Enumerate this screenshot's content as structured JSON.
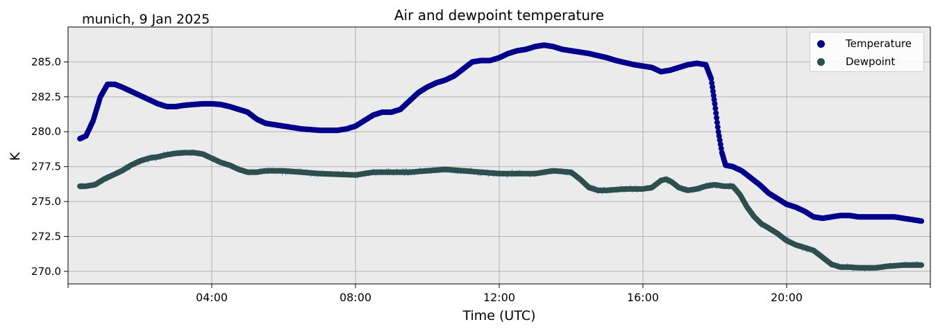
{
  "chart_data": {
    "type": "scatter",
    "title": "Air and dewpoint temperature",
    "subtitle": "munich, 9 Jan 2025",
    "xlabel": "Time (UTC)",
    "ylabel": "K",
    "x_unit": "hours UTC",
    "xlim": [
      0,
      24
    ],
    "ylim": [
      269.1,
      287.5
    ],
    "x_ticks": [
      4,
      8,
      12,
      16,
      20
    ],
    "x_tick_labels": [
      "04:00",
      "08:00",
      "12:00",
      "16:00",
      "20:00"
    ],
    "y_ticks": [
      270.0,
      272.5,
      275.0,
      277.5,
      280.0,
      282.5,
      285.0
    ],
    "y_tick_labels": [
      "270.0",
      "272.5",
      "275.0",
      "277.5",
      "280.0",
      "282.5",
      "285.0"
    ],
    "grid": true,
    "legend_position": "top-right",
    "series": [
      {
        "name": "Temperature",
        "color": "#00008b",
        "raw_color": "#7aa6a6",
        "x": [
          0.33,
          0.5,
          0.7,
          0.9,
          1.1,
          1.3,
          1.5,
          1.75,
          2.0,
          2.25,
          2.5,
          2.75,
          3.0,
          3.25,
          3.5,
          3.75,
          4.0,
          4.25,
          4.5,
          4.75,
          5.0,
          5.25,
          5.5,
          5.75,
          6.0,
          6.25,
          6.5,
          6.75,
          7.0,
          7.25,
          7.5,
          7.75,
          8.0,
          8.25,
          8.5,
          8.75,
          9.0,
          9.25,
          9.5,
          9.75,
          10.0,
          10.25,
          10.5,
          10.75,
          11.0,
          11.25,
          11.5,
          11.75,
          12.0,
          12.25,
          12.5,
          12.75,
          13.0,
          13.25,
          13.5,
          13.75,
          14.0,
          14.25,
          14.5,
          14.75,
          15.0,
          15.25,
          15.5,
          15.75,
          16.0,
          16.25,
          16.5,
          16.75,
          17.0,
          17.25,
          17.5,
          17.75,
          17.9,
          18.0,
          18.1,
          18.2,
          18.3,
          18.5,
          18.75,
          19.0,
          19.25,
          19.5,
          19.75,
          20.0,
          20.25,
          20.5,
          20.75,
          21.0,
          21.25,
          21.5,
          21.75,
          22.0,
          22.25,
          22.5,
          22.75,
          23.0,
          23.25,
          23.5,
          23.75
        ],
        "y": [
          279.5,
          279.7,
          280.8,
          282.5,
          283.4,
          283.4,
          283.2,
          282.9,
          282.6,
          282.3,
          282.0,
          281.8,
          281.8,
          281.9,
          281.95,
          282.0,
          282.0,
          281.95,
          281.8,
          281.6,
          281.4,
          280.9,
          280.6,
          280.5,
          280.4,
          280.3,
          280.2,
          280.15,
          280.1,
          280.1,
          280.1,
          280.2,
          280.4,
          280.8,
          281.2,
          281.4,
          281.4,
          281.6,
          282.2,
          282.8,
          283.2,
          283.5,
          283.7,
          284.0,
          284.5,
          285.0,
          285.1,
          285.1,
          285.3,
          285.6,
          285.8,
          285.9,
          286.1,
          286.2,
          286.1,
          285.9,
          285.8,
          285.7,
          285.6,
          285.45,
          285.3,
          285.1,
          284.95,
          284.8,
          284.7,
          284.6,
          284.3,
          284.4,
          284.6,
          284.8,
          284.9,
          284.8,
          283.8,
          282.0,
          280.0,
          278.5,
          277.6,
          277.5,
          277.2,
          276.7,
          276.2,
          275.6,
          275.2,
          274.8,
          274.6,
          274.3,
          273.9,
          273.8,
          273.9,
          274.0,
          274.0,
          273.9,
          273.9,
          273.9,
          273.9,
          273.9,
          273.8,
          273.7,
          273.6
        ]
      },
      {
        "name": "Dewpoint",
        "color": "#2f4f4f",
        "raw_color": "#1e90ff",
        "x": [
          0.33,
          0.5,
          0.75,
          1.0,
          1.25,
          1.5,
          1.75,
          2.0,
          2.25,
          2.5,
          2.75,
          3.0,
          3.25,
          3.5,
          3.75,
          4.0,
          4.25,
          4.5,
          4.75,
          5.0,
          5.25,
          5.5,
          5.75,
          6.0,
          6.5,
          7.0,
          7.5,
          8.0,
          8.5,
          9.0,
          9.5,
          10.0,
          10.5,
          11.0,
          11.5,
          12.0,
          12.5,
          13.0,
          13.5,
          14.0,
          14.25,
          14.5,
          14.75,
          15.0,
          15.25,
          15.5,
          15.75,
          16.0,
          16.25,
          16.5,
          16.65,
          16.8,
          17.0,
          17.25,
          17.5,
          17.75,
          18.0,
          18.25,
          18.5,
          18.7,
          18.9,
          19.1,
          19.3,
          19.5,
          19.75,
          20.0,
          20.25,
          20.5,
          20.75,
          21.0,
          21.25,
          21.5,
          21.75,
          22.0,
          22.25,
          22.5,
          22.75,
          23.0,
          23.25,
          23.5,
          23.75
        ],
        "y": [
          276.1,
          276.1,
          276.2,
          276.6,
          276.9,
          277.2,
          277.6,
          277.9,
          278.1,
          278.2,
          278.35,
          278.45,
          278.5,
          278.5,
          278.4,
          278.1,
          277.8,
          277.6,
          277.3,
          277.1,
          277.1,
          277.2,
          277.2,
          277.2,
          277.1,
          277.0,
          276.95,
          276.9,
          277.1,
          277.1,
          277.1,
          277.2,
          277.3,
          277.2,
          277.1,
          277.0,
          277.0,
          277.0,
          277.2,
          277.1,
          276.6,
          276.0,
          275.8,
          275.8,
          275.85,
          275.9,
          275.9,
          275.9,
          276.0,
          276.5,
          276.6,
          276.4,
          276.0,
          275.8,
          275.9,
          276.1,
          276.2,
          276.1,
          276.1,
          275.5,
          274.6,
          273.9,
          273.4,
          273.1,
          272.7,
          272.2,
          271.9,
          271.7,
          271.5,
          271.0,
          270.5,
          270.3,
          270.3,
          270.25,
          270.25,
          270.25,
          270.35,
          270.4,
          270.45,
          270.45,
          270.45
        ]
      }
    ]
  }
}
